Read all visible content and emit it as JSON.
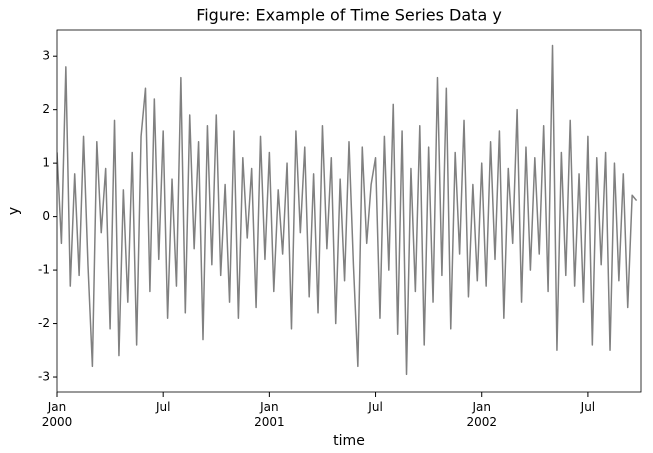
{
  "chart_data": {
    "type": "line",
    "title": "Figure: Example of Time Series Data y",
    "x_label": "time",
    "y_label": "y",
    "x": [
      "2000-01",
      "2000-01",
      "2000-01",
      "2000-01",
      "2000-02",
      "2000-02",
      "2000-02",
      "2000-02",
      "2000-03",
      "2000-03",
      "2000-03",
      "2000-03",
      "2000-04",
      "2000-04",
      "2000-04",
      "2000-04",
      "2000-05",
      "2000-05",
      "2000-05",
      "2000-05",
      "2000-06",
      "2000-06",
      "2000-06",
      "2000-06",
      "2000-07",
      "2000-07",
      "2000-07",
      "2000-07",
      "2000-08",
      "2000-08",
      "2000-08",
      "2000-08",
      "2000-09",
      "2000-09",
      "2000-09",
      "2000-09",
      "2000-10",
      "2000-10",
      "2000-10",
      "2000-10",
      "2000-11",
      "2000-11",
      "2000-11",
      "2000-11",
      "2000-12",
      "2000-12",
      "2000-12",
      "2000-12",
      "2001-01",
      "2001-01",
      "2001-01",
      "2001-01",
      "2001-02",
      "2001-02",
      "2001-02",
      "2001-02",
      "2001-03",
      "2001-03",
      "2001-03",
      "2001-03",
      "2001-04",
      "2001-04",
      "2001-04",
      "2001-04",
      "2001-05",
      "2001-05",
      "2001-05",
      "2001-05",
      "2001-06",
      "2001-06",
      "2001-06",
      "2001-06",
      "2001-07",
      "2001-07",
      "2001-07",
      "2001-07",
      "2001-08",
      "2001-08",
      "2001-08",
      "2001-08",
      "2001-09",
      "2001-09",
      "2001-09",
      "2001-09",
      "2001-10",
      "2001-10",
      "2001-10",
      "2001-10",
      "2001-11",
      "2001-11",
      "2001-11",
      "2001-11",
      "2001-12",
      "2001-12",
      "2001-12",
      "2001-12",
      "2002-01",
      "2002-01",
      "2002-01",
      "2002-01",
      "2002-02",
      "2002-02",
      "2002-02",
      "2002-02",
      "2002-03",
      "2002-03",
      "2002-03",
      "2002-03",
      "2002-04",
      "2002-04",
      "2002-04",
      "2002-04",
      "2002-05",
      "2002-05",
      "2002-05",
      "2002-05",
      "2002-06",
      "2002-06",
      "2002-06",
      "2002-06",
      "2002-07",
      "2002-07",
      "2002-07",
      "2002-07",
      "2002-08",
      "2002-08",
      "2002-08",
      "2002-08",
      "2002-09",
      "2002-09",
      "2002-09",
      "2002-09"
    ],
    "series": [
      {
        "color": "#808080",
        "values": [
          1.2,
          -0.5,
          2.8,
          -1.3,
          0.8,
          -1.1,
          1.5,
          -0.9,
          -2.8,
          1.4,
          -0.3,
          0.9,
          -2.1,
          1.8,
          -2.6,
          0.5,
          -1.6,
          1.2,
          -2.4,
          1.5,
          2.4,
          -1.4,
          2.2,
          -0.8,
          1.6,
          -1.9,
          0.7,
          -1.3,
          2.6,
          -1.8,
          1.9,
          -0.6,
          1.4,
          -2.3,
          1.7,
          -0.9,
          1.9,
          -1.1,
          0.6,
          -1.6,
          1.6,
          -1.9,
          1.1,
          -0.4,
          0.9,
          -1.7,
          1.5,
          -0.8,
          1.2,
          -1.4,
          0.5,
          -0.7,
          1.0,
          -2.1,
          1.6,
          -0.3,
          1.3,
          -1.5,
          0.8,
          -1.8,
          1.7,
          -0.6,
          1.1,
          -2.0,
          0.7,
          -1.2,
          1.4,
          -0.9,
          -2.8,
          1.3,
          -0.5,
          0.6,
          1.1,
          -1.9,
          1.5,
          -1.0,
          2.1,
          -2.2,
          1.6,
          -2.95,
          0.9,
          -1.4,
          1.7,
          -2.4,
          1.3,
          -1.6,
          2.6,
          -1.1,
          2.4,
          -2.1,
          1.2,
          -0.7,
          1.8,
          -1.5,
          0.6,
          -1.2,
          1.0,
          -1.3,
          1.4,
          -0.8,
          1.6,
          -1.9,
          0.9,
          -0.5,
          2.0,
          -1.6,
          1.3,
          -1.0,
          1.1,
          -0.7,
          1.7,
          -1.4,
          3.2,
          -2.5,
          1.2,
          -1.1,
          1.8,
          -1.3,
          0.8,
          -1.6,
          1.5,
          -2.4,
          1.1,
          -0.9,
          1.2,
          -2.5,
          1.0,
          -1.2,
          0.8,
          -1.7,
          0.4,
          0.3
        ]
      }
    ],
    "xlim": [
      "2000-01",
      "2002-10"
    ],
    "xticks": [
      {
        "value": "2000-01",
        "label": "Jan 2000"
      },
      {
        "value": "2000-07",
        "label": "Jul"
      },
      {
        "value": "2001-01",
        "label": "Jan 2001"
      },
      {
        "value": "2001-07",
        "label": "Jul"
      },
      {
        "value": "2002-01",
        "label": "Jan 2002"
      },
      {
        "value": "2002-07",
        "label": "Jul"
      }
    ],
    "ylim": [
      -3.28,
      3.49
    ],
    "yticks": [
      -3,
      -2,
      -1,
      0,
      1,
      2,
      3
    ],
    "grid": false
  }
}
